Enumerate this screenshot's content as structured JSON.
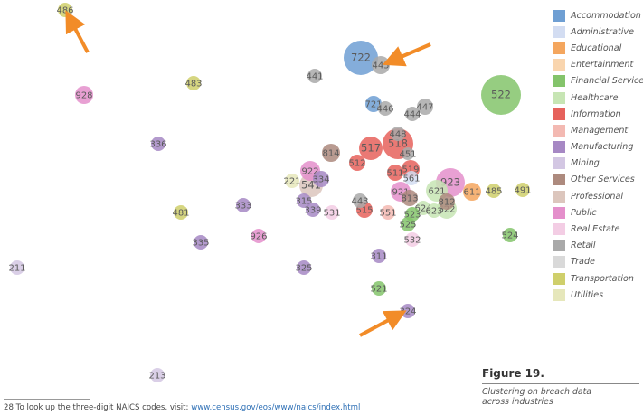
{
  "figure": {
    "title": "Figure 19.",
    "caption": "Clustering on breach data across industries"
  },
  "footnote": {
    "text": "28 To look up the three-digit NAICS codes, visit: ",
    "link": "www.census.gov/eos/www/naics/index.html"
  },
  "legend": [
    {
      "name": "Accommodation",
      "color": "#6f9fd3"
    },
    {
      "name": "Administrative",
      "color": "#d3ddf2"
    },
    {
      "name": "Educational",
      "color": "#f4a65e"
    },
    {
      "name": "Entertainment",
      "color": "#f9d5ae"
    },
    {
      "name": "Financial Services",
      "color": "#84c46b"
    },
    {
      "name": "Healthcare",
      "color": "#c7e5b4"
    },
    {
      "name": "Information",
      "color": "#e6625c"
    },
    {
      "name": "Management",
      "color": "#f3b9b2"
    },
    {
      "name": "Manufacturing",
      "color": "#a688c4"
    },
    {
      "name": "Mining",
      "color": "#d3c7e3"
    },
    {
      "name": "Other Services",
      "color": "#ad8a7e"
    },
    {
      "name": "Professional",
      "color": "#dcc6bd"
    },
    {
      "name": "Public",
      "color": "#e48fcb"
    },
    {
      "name": "Real Estate",
      "color": "#f3cde4"
    },
    {
      "name": "Retail",
      "color": "#a9a9a9"
    },
    {
      "name": "Trade",
      "color": "#d9d9d9"
    },
    {
      "name": "Transportation",
      "color": "#cfcf6b"
    },
    {
      "name": "Utilities",
      "color": "#e6e7bb"
    }
  ],
  "chart_data": {
    "type": "scatter",
    "title": "",
    "xlabel": "",
    "ylabel": "",
    "axes_visible": false,
    "grid": false,
    "legend_position": "right",
    "xlim": [
      0,
      600
    ],
    "ylim": [
      0,
      440
    ],
    "arrow_color": "#f28c28",
    "points": [
      {
        "label": "486",
        "category": "Transportation",
        "x": 72,
        "y": 429,
        "r": 8
      },
      {
        "label": "722",
        "category": "Accommodation",
        "x": 399,
        "y": 376,
        "r": 19
      },
      {
        "label": "445",
        "category": "Retail",
        "x": 421,
        "y": 368,
        "r": 10
      },
      {
        "label": "441",
        "category": "Retail",
        "x": 348,
        "y": 356,
        "r": 8
      },
      {
        "label": "483",
        "category": "Transportation",
        "x": 214,
        "y": 348,
        "r": 8
      },
      {
        "label": "522",
        "category": "Financial Services",
        "x": 554,
        "y": 335,
        "r": 22
      },
      {
        "label": "928",
        "category": "Public",
        "x": 93,
        "y": 335,
        "r": 10
      },
      {
        "label": "721",
        "category": "Accommodation",
        "x": 413,
        "y": 325,
        "r": 9
      },
      {
        "label": "446",
        "category": "Retail",
        "x": 426,
        "y": 320,
        "r": 8
      },
      {
        "label": "447",
        "category": "Retail",
        "x": 470,
        "y": 322,
        "r": 9
      },
      {
        "label": "444",
        "category": "Retail",
        "x": 456,
        "y": 314,
        "r": 8
      },
      {
        "label": "518",
        "category": "Information",
        "x": 440,
        "y": 281,
        "r": 17
      },
      {
        "label": "448",
        "category": "Retail",
        "x": 440,
        "y": 292,
        "r": 8
      },
      {
        "label": "517",
        "category": "Information",
        "x": 410,
        "y": 276,
        "r": 13
      },
      {
        "label": "451",
        "category": "Retail",
        "x": 451,
        "y": 270,
        "r": 7
      },
      {
        "label": "814",
        "category": "Other Services",
        "x": 366,
        "y": 271,
        "r": 10
      },
      {
        "label": "336",
        "category": "Manufacturing",
        "x": 175,
        "y": 281,
        "r": 8
      },
      {
        "label": "512",
        "category": "Information",
        "x": 395,
        "y": 260,
        "r": 9
      },
      {
        "label": "519",
        "category": "Information",
        "x": 454,
        "y": 253,
        "r": 10
      },
      {
        "label": "511",
        "category": "Information",
        "x": 437,
        "y": 249,
        "r": 9
      },
      {
        "label": "922",
        "category": "Public",
        "x": 343,
        "y": 251,
        "r": 11
      },
      {
        "label": "334",
        "category": "Manufacturing",
        "x": 355,
        "y": 242,
        "r": 9
      },
      {
        "label": "923",
        "category": "Public",
        "x": 498,
        "y": 238,
        "r": 16
      },
      {
        "label": "221",
        "category": "Utilities",
        "x": 323,
        "y": 240,
        "r": 8
      },
      {
        "label": "541",
        "category": "Professional",
        "x": 344,
        "y": 235,
        "r": 13
      },
      {
        "label": "561",
        "category": "Administrative",
        "x": 455,
        "y": 243,
        "r": 8
      },
      {
        "label": "485",
        "category": "Transportation",
        "x": 546,
        "y": 229,
        "r": 8
      },
      {
        "label": "491",
        "category": "Transportation",
        "x": 578,
        "y": 230,
        "r": 8
      },
      {
        "label": "611",
        "category": "Educational",
        "x": 522,
        "y": 228,
        "r": 10
      },
      {
        "label": "921",
        "category": "Public",
        "x": 443,
        "y": 228,
        "r": 11
      },
      {
        "label": "621",
        "category": "Healthcare",
        "x": 483,
        "y": 229,
        "r": 12
      },
      {
        "label": "813",
        "category": "Other Services",
        "x": 453,
        "y": 221,
        "r": 9
      },
      {
        "label": "812",
        "category": "Other Services",
        "x": 494,
        "y": 217,
        "r": 9
      },
      {
        "label": "315",
        "category": "Manufacturing",
        "x": 336,
        "y": 218,
        "r": 8
      },
      {
        "label": "443",
        "category": "Retail",
        "x": 398,
        "y": 218,
        "r": 8
      },
      {
        "label": "333",
        "category": "Manufacturing",
        "x": 269,
        "y": 213,
        "r": 8
      },
      {
        "label": "624",
        "category": "Healthcare",
        "x": 468,
        "y": 210,
        "r": 8
      },
      {
        "label": "622",
        "category": "Healthcare",
        "x": 494,
        "y": 209,
        "r": 11
      },
      {
        "label": "623",
        "category": "Healthcare",
        "x": 480,
        "y": 207,
        "r": 8
      },
      {
        "label": "515",
        "category": "Information",
        "x": 403,
        "y": 208,
        "r": 9
      },
      {
        "label": "339",
        "category": "Manufacturing",
        "x": 346,
        "y": 208,
        "r": 8
      },
      {
        "label": "531",
        "category": "Real Estate",
        "x": 367,
        "y": 205,
        "r": 8
      },
      {
        "label": "551",
        "category": "Management",
        "x": 429,
        "y": 205,
        "r": 8
      },
      {
        "label": "523",
        "category": "Financial Services",
        "x": 456,
        "y": 203,
        "r": 8
      },
      {
        "label": "481",
        "category": "Transportation",
        "x": 200,
        "y": 205,
        "r": 8
      },
      {
        "label": "525",
        "category": "Financial Services",
        "x": 451,
        "y": 192,
        "r": 8
      },
      {
        "label": "926",
        "category": "Public",
        "x": 286,
        "y": 179,
        "r": 8
      },
      {
        "label": "524",
        "category": "Financial Services",
        "x": 564,
        "y": 180,
        "r": 8
      },
      {
        "label": "532",
        "category": "Real Estate",
        "x": 456,
        "y": 175,
        "r": 8
      },
      {
        "label": "335",
        "category": "Manufacturing",
        "x": 222,
        "y": 172,
        "r": 8
      },
      {
        "label": "311",
        "category": "Manufacturing",
        "x": 419,
        "y": 157,
        "r": 8
      },
      {
        "label": "211",
        "category": "Mining",
        "x": 19,
        "y": 144,
        "r": 8
      },
      {
        "label": "325",
        "category": "Manufacturing",
        "x": 336,
        "y": 144,
        "r": 8
      },
      {
        "label": "521",
        "category": "Financial Services",
        "x": 419,
        "y": 121,
        "r": 8
      },
      {
        "label": "324",
        "category": "Manufacturing",
        "x": 451,
        "y": 96,
        "r": 8
      },
      {
        "label": "213",
        "category": "Mining",
        "x": 174,
        "y": 25,
        "r": 8
      }
    ],
    "arrows": [
      {
        "from": [
          97,
          382
        ],
        "to": [
          78,
          418
        ]
      },
      {
        "from": [
          476,
          391
        ],
        "to": [
          434,
          373
        ]
      },
      {
        "from": [
          398,
          69
        ],
        "to": [
          439,
          91
        ]
      }
    ]
  }
}
